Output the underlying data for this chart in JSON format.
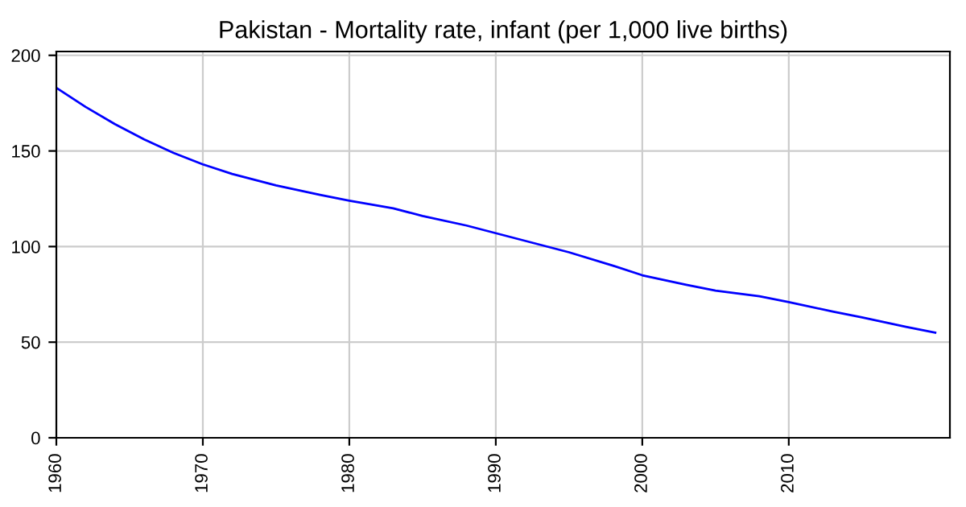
{
  "chart_data": {
    "type": "line",
    "title": "Pakistan - Mortality rate, infant (per 1,000 live births)",
    "x": [
      1960,
      1962,
      1964,
      1966,
      1968,
      1970,
      1972,
      1975,
      1978,
      1980,
      1983,
      1985,
      1988,
      1990,
      1993,
      1995,
      1998,
      2000,
      2003,
      2005,
      2008,
      2010,
      2013,
      2015,
      2018,
      2020
    ],
    "series": [
      {
        "color": "#0000ff",
        "values": [
          183,
          173,
          164,
          156,
          149,
          143,
          138,
          132,
          127,
          124,
          120,
          116,
          111,
          107,
          101,
          97,
          90,
          85,
          80,
          77,
          74,
          71,
          66,
          63,
          58,
          55
        ]
      }
    ],
    "xlim": [
      1960,
      2021
    ],
    "xticks": [
      1960,
      1970,
      1980,
      1990,
      2000,
      2010
    ],
    "ylim": [
      0,
      202
    ],
    "yticks": [
      0,
      50,
      100,
      150,
      200
    ],
    "grid": true
  }
}
